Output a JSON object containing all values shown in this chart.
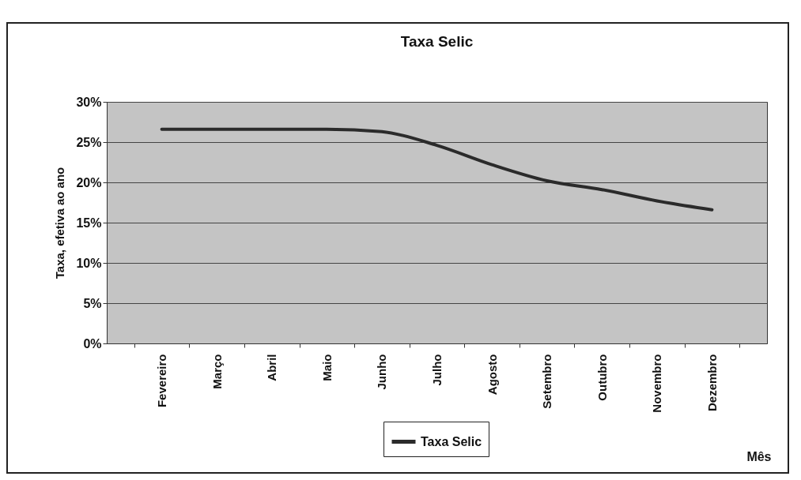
{
  "chart_data": {
    "type": "line",
    "title": "Taxa Selic",
    "xlabel": "Mês",
    "ylabel": "Taxa, efetiva ao ano",
    "categories": [
      "Fevereiro",
      "Março",
      "Abril",
      "Maio",
      "Junho",
      "Julho",
      "Agosto",
      "Setembro",
      "Outubro",
      "Novembro",
      "Dezembro"
    ],
    "series": [
      {
        "name": "Taxa Selic",
        "color": "#2b2b2b",
        "values": [
          26.6,
          26.6,
          26.6,
          26.6,
          26.3,
          24.6,
          22.2,
          20.2,
          19.1,
          17.7,
          16.6
        ]
      }
    ],
    "ylim": [
      0,
      30
    ],
    "yticks": [
      {
        "value": 0,
        "label": "0%"
      },
      {
        "value": 5,
        "label": "5%"
      },
      {
        "value": 10,
        "label": "10%"
      },
      {
        "value": 15,
        "label": "15%"
      },
      {
        "value": 20,
        "label": "20%"
      },
      {
        "value": 25,
        "label": "25%"
      },
      {
        "value": 30,
        "label": "30%"
      }
    ],
    "grid": "y",
    "legend": "bottom",
    "marker": "none",
    "line_style": "solid"
  }
}
